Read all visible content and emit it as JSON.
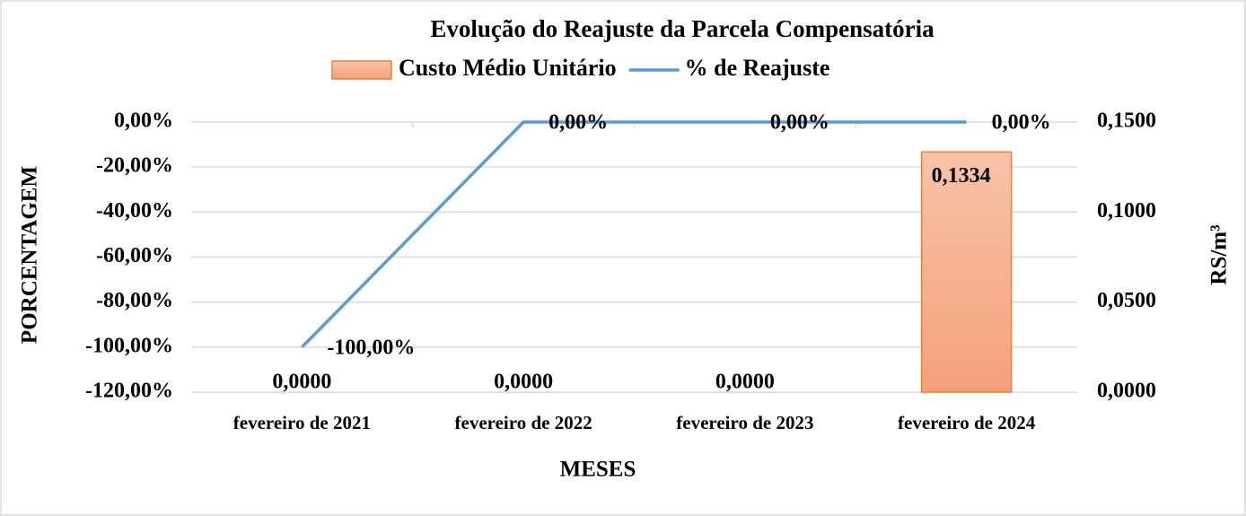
{
  "chart_data": {
    "type": "bar_line",
    "title": "Evolução do Reajuste da Parcela Compensatória",
    "x_label": "MESES",
    "y_label": "PORCENTAGEM",
    "y2_label": "RS/m³",
    "categories": [
      "fevereiro de 2021",
      "fevereiro de 2022",
      "fevereiro de 2023",
      "fevereiro de 2024"
    ],
    "series": [
      {
        "name": "Custo Médio Unitário",
        "type": "bar",
        "axis": "y2",
        "color": "#f4a67e",
        "edge_color": "#ed7d31",
        "values": [
          0,
          0,
          0,
          0.1334
        ],
        "value_labels": [
          "0,0000",
          "0,0000",
          "0,0000",
          "0,1334"
        ]
      },
      {
        "name": "% de Reajuste",
        "type": "line",
        "axis": "y",
        "color": "#5b9bd5",
        "values": [
          -100,
          0,
          0,
          0
        ],
        "value_labels": [
          "-100,00%",
          "0,00%",
          "0,00%",
          "0,00%"
        ]
      }
    ],
    "ylim": [
      -120,
      0
    ],
    "yticks": [
      {
        "value": -120,
        "label": "-120,00%"
      },
      {
        "value": -100,
        "label": "-100,00%"
      },
      {
        "value": -80,
        "label": "-80,00%"
      },
      {
        "value": -60,
        "label": "-60,00%"
      },
      {
        "value": -40,
        "label": "-40,00%"
      },
      {
        "value": -20,
        "label": "-20,00%"
      },
      {
        "value": 0,
        "label": "0,00%"
      }
    ],
    "y2lim": [
      0,
      0.15
    ],
    "y2ticks": [
      {
        "value": 0,
        "label": "0,0000"
      },
      {
        "value": 0.05,
        "label": "0,0500"
      },
      {
        "value": 0.1,
        "label": "0,1000"
      },
      {
        "value": 0.15,
        "label": "0,1500"
      }
    ],
    "grid": true
  }
}
